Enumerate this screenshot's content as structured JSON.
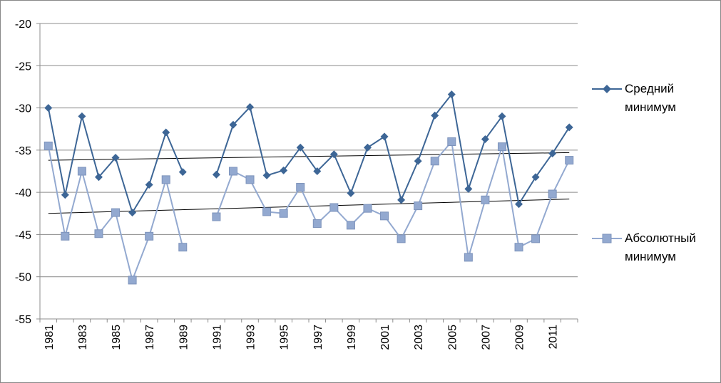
{
  "chart_data": {
    "type": "line",
    "categories": [
      1981,
      1982,
      1983,
      1984,
      1985,
      1986,
      1987,
      1988,
      1989,
      1990,
      1991,
      1992,
      1993,
      1994,
      1995,
      1996,
      1997,
      1998,
      1999,
      2000,
      2001,
      2002,
      2003,
      2004,
      2005,
      2006,
      2007,
      2008,
      2009,
      2010,
      2011,
      2012
    ],
    "x_tick_labels": [
      "1981",
      "1983",
      "1985",
      "1987",
      "1989",
      "1991",
      "1993",
      "1995",
      "1997",
      "1999",
      "2001",
      "2003",
      "2005",
      "2007",
      "2009",
      "2011"
    ],
    "y_tick_labels": [
      "-20",
      "-25",
      "-30",
      "-35",
      "-40",
      "-45",
      "-50",
      "-55"
    ],
    "ylim": [
      -55,
      -20
    ],
    "grid": true,
    "legend_position": "right",
    "series": [
      {
        "name": "Средний минимум",
        "color": "#3d6696",
        "marker": "diamond",
        "values": [
          -30.0,
          -40.3,
          -31.0,
          -38.2,
          -35.9,
          -42.4,
          -39.1,
          -32.9,
          -37.6,
          null,
          -37.9,
          -32.0,
          -29.9,
          -38.0,
          -37.4,
          -34.7,
          -37.5,
          -35.5,
          -40.1,
          -34.7,
          -33.4,
          -40.9,
          -36.3,
          -30.9,
          -28.4,
          -39.6,
          -33.7,
          -31.0,
          -41.4,
          -38.2,
          -35.4,
          -32.3
        ]
      },
      {
        "name": "Абсолютный минимум",
        "color": "#93a9d0",
        "marker": "square",
        "values": [
          -34.5,
          -45.2,
          -37.5,
          -44.9,
          -42.4,
          -50.4,
          -45.2,
          -38.5,
          -46.5,
          null,
          -42.9,
          -37.5,
          -38.5,
          -42.3,
          -42.5,
          -39.4,
          -43.7,
          -41.8,
          -43.9,
          -41.9,
          -42.8,
          -45.5,
          -41.6,
          -36.3,
          -34.0,
          -47.7,
          -40.9,
          -34.6,
          -46.5,
          -45.5,
          -40.2,
          -36.2
        ]
      }
    ],
    "trendlines": [
      {
        "series": "Средний минимум",
        "start": -36.2,
        "end": -35.3
      },
      {
        "series": "Абсолютный минимум",
        "start": -42.5,
        "end": -40.8
      }
    ]
  }
}
